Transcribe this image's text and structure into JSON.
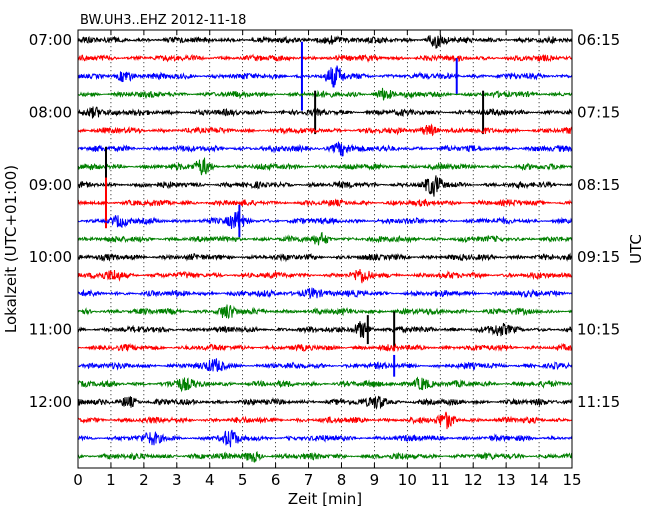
{
  "chart_data": {
    "type": "line",
    "title": "BW.UH3..EHZ  2012-11-18",
    "xlabel": "Zeit  [min]",
    "ylabel_left": "Lokalzeit (UTC+01:00)",
    "ylabel_right": "UTC",
    "xlim": [
      0,
      15
    ],
    "x_ticks": [
      "0",
      "1",
      "2",
      "3",
      "4",
      "5",
      "6",
      "7",
      "8",
      "9",
      "10",
      "11",
      "12",
      "13",
      "14",
      "15"
    ],
    "trace_count": 24,
    "trace_minutes": 15,
    "color_cycle": [
      "#000000",
      "#ff0000",
      "#0000ff",
      "#008000"
    ],
    "left_labels": [
      {
        "trace": 0,
        "text": "07:00"
      },
      {
        "trace": 4,
        "text": "08:00"
      },
      {
        "trace": 8,
        "text": "09:00"
      },
      {
        "trace": 12,
        "text": "10:00"
      },
      {
        "trace": 16,
        "text": "11:00"
      },
      {
        "trace": 20,
        "text": "12:00"
      }
    ],
    "right_labels": [
      {
        "trace": 0,
        "text": "06:15"
      },
      {
        "trace": 4,
        "text": "07:15"
      },
      {
        "trace": 8,
        "text": "08:15"
      },
      {
        "trace": 12,
        "text": "09:15"
      },
      {
        "trace": 16,
        "text": "10:15"
      },
      {
        "trace": 20,
        "text": "11:15"
      }
    ],
    "grid": "vertical-dotted",
    "events": [
      {
        "trace": 2,
        "minute": 6.8,
        "amplitude": 1.9
      },
      {
        "trace": 2,
        "minute": 11.5,
        "amplitude": 1.0
      },
      {
        "trace": 4,
        "minute": 7.2,
        "amplitude": 1.2
      },
      {
        "trace": 4,
        "minute": 12.3,
        "amplitude": 1.2
      },
      {
        "trace": 8,
        "minute": 0.85,
        "amplitude": 2.1
      },
      {
        "trace": 9,
        "minute": 0.85,
        "amplitude": 1.4
      },
      {
        "trace": 10,
        "minute": 4.9,
        "amplitude": 0.9
      },
      {
        "trace": 16,
        "minute": 9.6,
        "amplitude": 1.0
      },
      {
        "trace": 16,
        "minute": 8.8,
        "amplitude": 0.8
      },
      {
        "trace": 18,
        "minute": 9.6,
        "amplitude": 0.6
      }
    ],
    "bursts": [
      {
        "trace": 0,
        "minute": 10.9,
        "amplitude": 0.45
      },
      {
        "trace": 0,
        "minute": 7.7,
        "amplitude": 0.3
      },
      {
        "trace": 2,
        "minute": 7.8,
        "amplitude": 0.6
      },
      {
        "trace": 2,
        "minute": 1.4,
        "amplitude": 0.35
      },
      {
        "trace": 3,
        "minute": 9.3,
        "amplitude": 0.35
      },
      {
        "trace": 4,
        "minute": 0.5,
        "amplitude": 0.4
      },
      {
        "trace": 5,
        "minute": 10.7,
        "amplitude": 0.35
      },
      {
        "trace": 6,
        "minute": 8.0,
        "amplitude": 0.5
      },
      {
        "trace": 7,
        "minute": 3.8,
        "amplitude": 0.5
      },
      {
        "trace": 8,
        "minute": 10.8,
        "amplitude": 0.6
      },
      {
        "trace": 10,
        "minute": 4.8,
        "amplitude": 0.5
      },
      {
        "trace": 10,
        "minute": 1.2,
        "amplitude": 0.3
      },
      {
        "trace": 11,
        "minute": 7.4,
        "amplitude": 0.3
      },
      {
        "trace": 13,
        "minute": 8.6,
        "amplitude": 0.35
      },
      {
        "trace": 13,
        "minute": 1.1,
        "amplitude": 0.35
      },
      {
        "trace": 14,
        "minute": 7.1,
        "amplitude": 0.4
      },
      {
        "trace": 15,
        "minute": 4.5,
        "amplitude": 0.4
      },
      {
        "trace": 16,
        "minute": 8.6,
        "amplitude": 0.55
      },
      {
        "trace": 16,
        "minute": 12.8,
        "amplitude": 0.35
      },
      {
        "trace": 18,
        "minute": 4.2,
        "amplitude": 0.4
      },
      {
        "trace": 19,
        "minute": 10.4,
        "amplitude": 0.45
      },
      {
        "trace": 19,
        "minute": 3.2,
        "amplitude": 0.35
      },
      {
        "trace": 20,
        "minute": 9.1,
        "amplitude": 0.45
      },
      {
        "trace": 20,
        "minute": 1.5,
        "amplitude": 0.35
      },
      {
        "trace": 21,
        "minute": 11.2,
        "amplitude": 0.45
      },
      {
        "trace": 22,
        "minute": 4.6,
        "amplitude": 0.45
      },
      {
        "trace": 22,
        "minute": 2.3,
        "amplitude": 0.35
      },
      {
        "trace": 23,
        "minute": 5.3,
        "amplitude": 0.3
      }
    ]
  }
}
